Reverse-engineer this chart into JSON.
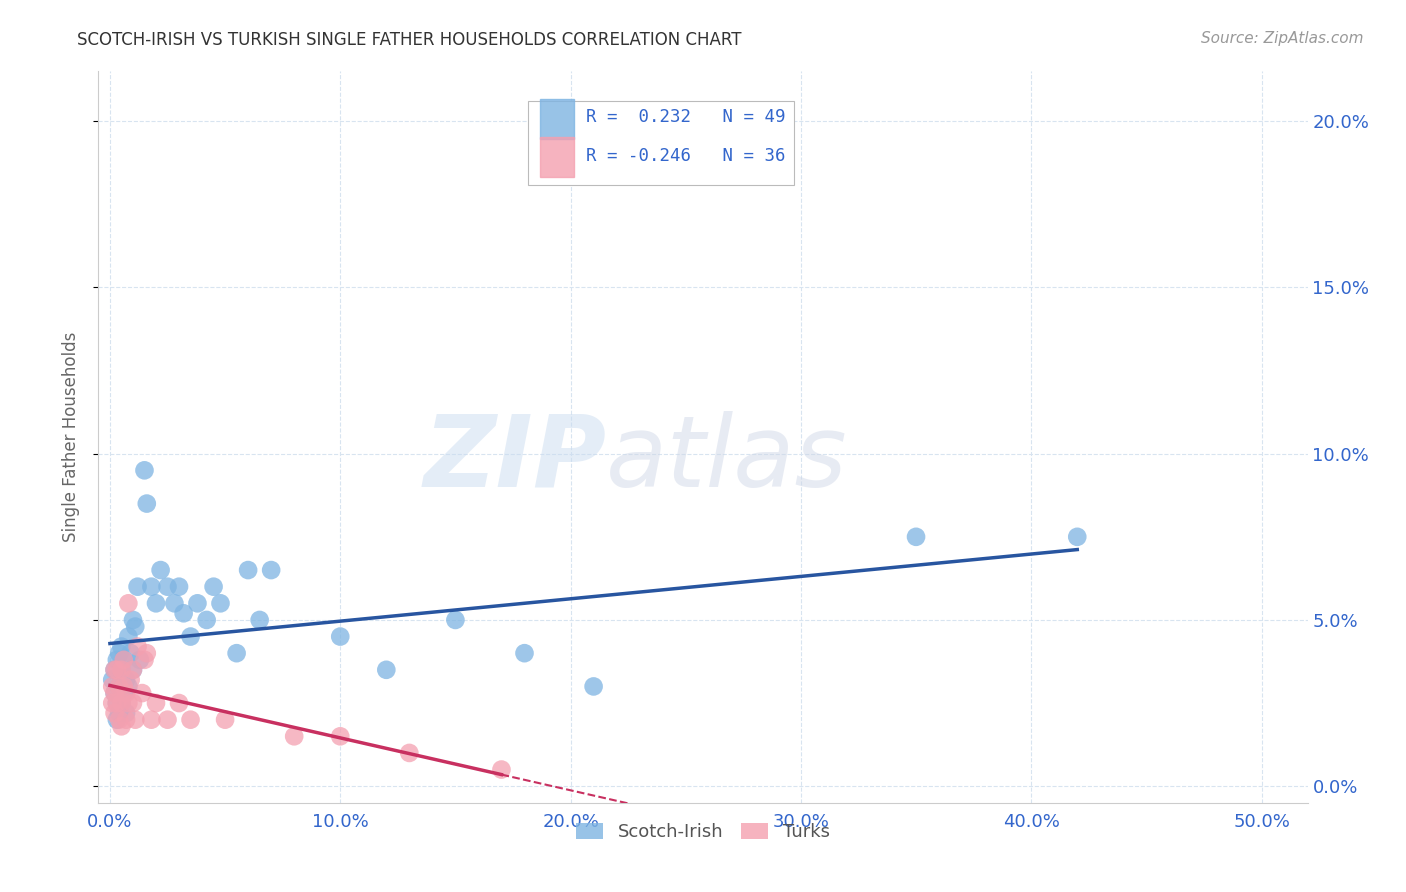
{
  "title": "SCOTCH-IRISH VS TURKISH SINGLE FATHER HOUSEHOLDS CORRELATION CHART",
  "source": "Source: ZipAtlas.com",
  "xlabel_ticks": [
    "0.0%",
    "10.0%",
    "20.0%",
    "30.0%",
    "40.0%",
    "50.0%"
  ],
  "xlabel_values": [
    0.0,
    0.1,
    0.2,
    0.3,
    0.4,
    0.5
  ],
  "ylabel_ticks": [
    "0.0%",
    "5.0%",
    "10.0%",
    "15.0%",
    "20.0%"
  ],
  "ylabel_values": [
    0.0,
    0.05,
    0.1,
    0.15,
    0.2
  ],
  "ylabel_label": "Single Father Households",
  "xlim": [
    -0.005,
    0.52
  ],
  "ylim": [
    -0.005,
    0.215
  ],
  "watermark_zip": "ZIP",
  "watermark_atlas": "atlas",
  "scotch_irish_R": 0.232,
  "scotch_irish_N": 49,
  "turks_R": -0.246,
  "turks_N": 36,
  "scotch_irish_color": "#7EB4E2",
  "turks_color": "#F4A0B0",
  "scotch_irish_line_color": "#2855A0",
  "turks_line_color": "#C83060",
  "legend_label_scotch": "Scotch-Irish",
  "legend_label_turks": "Turks",
  "scotch_irish_x": [
    0.001,
    0.002,
    0.002,
    0.003,
    0.003,
    0.003,
    0.004,
    0.004,
    0.004,
    0.005,
    0.005,
    0.005,
    0.006,
    0.006,
    0.007,
    0.007,
    0.008,
    0.008,
    0.009,
    0.01,
    0.01,
    0.011,
    0.012,
    0.013,
    0.015,
    0.016,
    0.018,
    0.02,
    0.022,
    0.025,
    0.028,
    0.03,
    0.032,
    0.035,
    0.038,
    0.042,
    0.045,
    0.048,
    0.055,
    0.06,
    0.065,
    0.07,
    0.1,
    0.12,
    0.15,
    0.18,
    0.21,
    0.35,
    0.42
  ],
  "scotch_irish_y": [
    0.032,
    0.028,
    0.035,
    0.02,
    0.025,
    0.038,
    0.022,
    0.03,
    0.04,
    0.025,
    0.035,
    0.042,
    0.028,
    0.038,
    0.022,
    0.032,
    0.03,
    0.045,
    0.04,
    0.035,
    0.05,
    0.048,
    0.06,
    0.038,
    0.095,
    0.085,
    0.06,
    0.055,
    0.065,
    0.06,
    0.055,
    0.06,
    0.052,
    0.045,
    0.055,
    0.05,
    0.06,
    0.055,
    0.04,
    0.065,
    0.05,
    0.065,
    0.045,
    0.035,
    0.05,
    0.04,
    0.03,
    0.075,
    0.075
  ],
  "turks_x": [
    0.001,
    0.001,
    0.002,
    0.002,
    0.002,
    0.003,
    0.003,
    0.004,
    0.004,
    0.005,
    0.005,
    0.005,
    0.006,
    0.006,
    0.007,
    0.007,
    0.008,
    0.008,
    0.009,
    0.01,
    0.01,
    0.011,
    0.012,
    0.014,
    0.015,
    0.016,
    0.018,
    0.02,
    0.025,
    0.03,
    0.035,
    0.05,
    0.08,
    0.1,
    0.13,
    0.17
  ],
  "turks_y": [
    0.03,
    0.025,
    0.035,
    0.028,
    0.022,
    0.035,
    0.025,
    0.03,
    0.02,
    0.035,
    0.025,
    0.018,
    0.03,
    0.038,
    0.028,
    0.02,
    0.055,
    0.025,
    0.032,
    0.025,
    0.035,
    0.02,
    0.042,
    0.028,
    0.038,
    0.04,
    0.02,
    0.025,
    0.02,
    0.025,
    0.02,
    0.02,
    0.015,
    0.015,
    0.01,
    0.005
  ],
  "background_color": "#FFFFFF",
  "grid_color": "#D8E4F0"
}
